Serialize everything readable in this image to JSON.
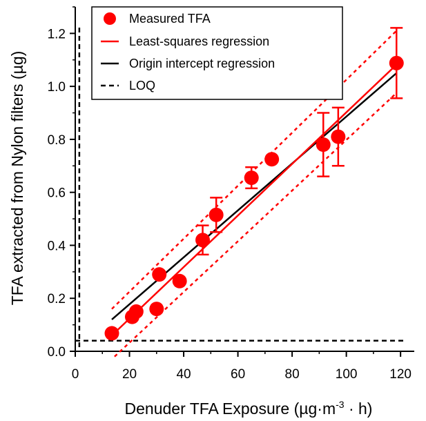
{
  "chart_data": {
    "type": "scatter",
    "xlabel_main": "Denuder TFA Exposure (µg·m",
    "xlabel_sup": "-3",
    "xlabel_tail": " · h)",
    "ylabel": "TFA extracted from Nylon filters (µg)",
    "xlim": [
      0,
      122
    ],
    "ylim": [
      0,
      1.3
    ],
    "x_ticks": [
      0,
      20,
      40,
      60,
      80,
      100,
      120
    ],
    "x_tick_labels": [
      "0",
      "20",
      "40",
      "60",
      "80",
      "100",
      "120"
    ],
    "y_ticks": [
      0.0,
      0.2,
      0.4,
      0.6,
      0.8,
      1.0,
      1.2
    ],
    "y_tick_labels": [
      "0.0",
      "0.2",
      "0.4",
      "0.6",
      "0.8",
      "1.0",
      "1.2"
    ],
    "grid": false,
    "legend_position": "top-left",
    "colors": {
      "measured": "#ff0000",
      "least_squares": "#ff0000",
      "origin": "#000000",
      "loq": "#000000",
      "band": "#ff0000"
    },
    "series": [
      {
        "name": "Measured TFA",
        "kind": "points_with_error",
        "points": [
          {
            "x": 13.5,
            "y": 0.068
          },
          {
            "x": 21,
            "y": 0.13
          },
          {
            "x": 22.5,
            "y": 0.15
          },
          {
            "x": 30,
            "y": 0.16
          },
          {
            "x": 31,
            "y": 0.29
          },
          {
            "x": 38.5,
            "y": 0.265
          },
          {
            "x": 47,
            "y": 0.42,
            "err": 0.055
          },
          {
            "x": 52,
            "y": 0.515,
            "err": 0.065
          },
          {
            "x": 65,
            "y": 0.655,
            "err": 0.04
          },
          {
            "x": 72.5,
            "y": 0.725
          },
          {
            "x": 91.5,
            "y": 0.78,
            "err": 0.12
          },
          {
            "x": 97,
            "y": 0.81,
            "err": 0.11
          },
          {
            "x": 118.5,
            "y": 1.088,
            "err": 0.133
          }
        ]
      },
      {
        "name": "Least-squares regression",
        "kind": "line",
        "x": [
          13.5,
          118.5
        ],
        "y": [
          0.06,
          1.082
        ]
      },
      {
        "name": "Origin intercept regression",
        "kind": "line",
        "x": [
          13.5,
          118.5
        ],
        "y": [
          0.12,
          1.05
        ]
      },
      {
        "name": "LOQ",
        "kind": "loq",
        "x_value": 1.5,
        "y_value": 0.04
      },
      {
        "kind": "confidence_band_upper",
        "x": [
          13.5,
          118.5
        ],
        "y": [
          0.16,
          1.21
        ]
      },
      {
        "kind": "confidence_band_lower",
        "x": [
          14.5,
          118.5
        ],
        "y": [
          -0.02,
          0.975
        ]
      }
    ]
  }
}
